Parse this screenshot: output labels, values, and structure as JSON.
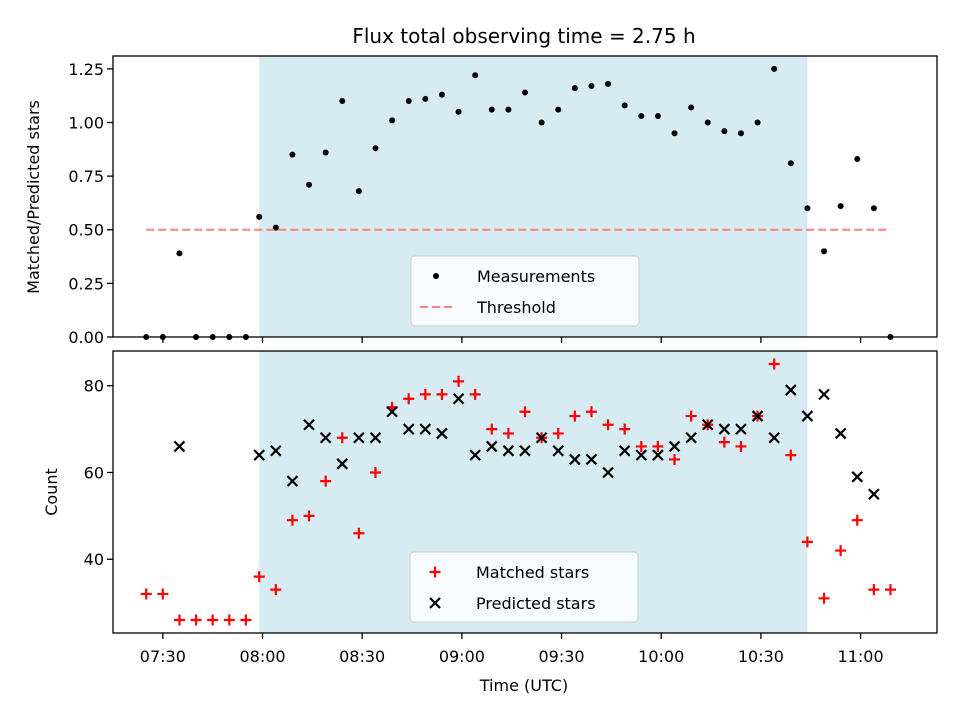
{
  "chart_data": [
    {
      "type": "scatter",
      "title": "Flux total observing time = 2.75 h",
      "ylabel": "Matched/Predicted stars",
      "xlabel": "",
      "x_range": [
        "07:15",
        "11:23"
      ],
      "ylim": [
        0,
        1.31
      ],
      "y_ticks": [
        "0.00",
        "0.25",
        "0.50",
        "0.75",
        "1.00",
        "1.25"
      ],
      "y_tick_values": [
        0,
        0.25,
        0.5,
        0.75,
        1.0,
        1.25
      ],
      "x_ticks": [
        "07:30",
        "08:00",
        "08:30",
        "09:00",
        "09:30",
        "10:00",
        "10:30",
        "11:00"
      ],
      "shaded_span": [
        "07:59",
        "10:44"
      ],
      "shade_color": "#add8e6",
      "legend_position": "lower-center",
      "series": [
        {
          "name": "Measurements",
          "marker": "dot",
          "color": "#000000",
          "points": [
            [
              "07:25",
              0.0
            ],
            [
              "07:30",
              0.0
            ],
            [
              "07:35",
              0.39
            ],
            [
              "07:40",
              0.0
            ],
            [
              "07:45",
              0.0
            ],
            [
              "07:50",
              0.0
            ],
            [
              "07:55",
              0.0
            ],
            [
              "07:59",
              0.56
            ],
            [
              "08:04",
              0.51
            ],
            [
              "08:09",
              0.85
            ],
            [
              "08:14",
              0.71
            ],
            [
              "08:19",
              0.86
            ],
            [
              "08:24",
              1.1
            ],
            [
              "08:29",
              0.68
            ],
            [
              "08:34",
              0.88
            ],
            [
              "08:39",
              1.01
            ],
            [
              "08:44",
              1.1
            ],
            [
              "08:49",
              1.11
            ],
            [
              "08:54",
              1.13
            ],
            [
              "08:59",
              1.05
            ],
            [
              "09:04",
              1.22
            ],
            [
              "09:09",
              1.06
            ],
            [
              "09:14",
              1.06
            ],
            [
              "09:19",
              1.14
            ],
            [
              "09:24",
              1.0
            ],
            [
              "09:29",
              1.06
            ],
            [
              "09:34",
              1.16
            ],
            [
              "09:39",
              1.17
            ],
            [
              "09:44",
              1.18
            ],
            [
              "09:49",
              1.08
            ],
            [
              "09:54",
              1.03
            ],
            [
              "09:59",
              1.03
            ],
            [
              "10:04",
              0.95
            ],
            [
              "10:09",
              1.07
            ],
            [
              "10:14",
              1.0
            ],
            [
              "10:19",
              0.96
            ],
            [
              "10:24",
              0.95
            ],
            [
              "10:29",
              1.0
            ],
            [
              "10:34",
              1.25
            ],
            [
              "10:39",
              0.81
            ],
            [
              "10:44",
              0.6
            ],
            [
              "10:49",
              0.4
            ],
            [
              "10:54",
              0.61
            ],
            [
              "10:59",
              0.83
            ],
            [
              "11:04",
              0.6
            ],
            [
              "11:09",
              0.0
            ]
          ]
        },
        {
          "name": "Threshold",
          "marker": "dashed-line",
          "color": "#ff7f7f",
          "points": [
            [
              "07:25",
              0.5
            ],
            [
              "11:09",
              0.5
            ]
          ]
        }
      ]
    },
    {
      "type": "scatter",
      "title": "",
      "ylabel": "Count",
      "xlabel": "Time (UTC)",
      "x_range": [
        "07:15",
        "11:23"
      ],
      "ylim": [
        23,
        88
      ],
      "y_ticks": [
        "40",
        "60",
        "80"
      ],
      "y_tick_values": [
        40,
        60,
        80
      ],
      "x_ticks": [
        "07:30",
        "08:00",
        "08:30",
        "09:00",
        "09:30",
        "10:00",
        "10:30",
        "11:00"
      ],
      "shaded_span": [
        "07:59",
        "10:44"
      ],
      "shade_color": "#add8e6",
      "legend_position": "lower-center",
      "series": [
        {
          "name": "Matched stars",
          "marker": "plus",
          "color": "#ff0000",
          "points": [
            [
              "07:25",
              32
            ],
            [
              "07:30",
              32
            ],
            [
              "07:35",
              26
            ],
            [
              "07:40",
              26
            ],
            [
              "07:45",
              26
            ],
            [
              "07:50",
              26
            ],
            [
              "07:55",
              26
            ],
            [
              "07:59",
              36
            ],
            [
              "08:04",
              33
            ],
            [
              "08:09",
              49
            ],
            [
              "08:14",
              50
            ],
            [
              "08:19",
              58
            ],
            [
              "08:24",
              68
            ],
            [
              "08:29",
              46
            ],
            [
              "08:34",
              60
            ],
            [
              "08:39",
              75
            ],
            [
              "08:44",
              77
            ],
            [
              "08:49",
              78
            ],
            [
              "08:54",
              78
            ],
            [
              "08:59",
              81
            ],
            [
              "09:04",
              78
            ],
            [
              "09:09",
              70
            ],
            [
              "09:14",
              69
            ],
            [
              "09:19",
              74
            ],
            [
              "09:24",
              68
            ],
            [
              "09:29",
              69
            ],
            [
              "09:34",
              73
            ],
            [
              "09:39",
              74
            ],
            [
              "09:44",
              71
            ],
            [
              "09:49",
              70
            ],
            [
              "09:54",
              66
            ],
            [
              "09:59",
              66
            ],
            [
              "10:04",
              63
            ],
            [
              "10:09",
              73
            ],
            [
              "10:14",
              71
            ],
            [
              "10:19",
              67
            ],
            [
              "10:24",
              66
            ],
            [
              "10:29",
              73
            ],
            [
              "10:34",
              85
            ],
            [
              "10:39",
              64
            ],
            [
              "10:44",
              44
            ],
            [
              "10:49",
              31
            ],
            [
              "10:54",
              42
            ],
            [
              "10:59",
              49
            ],
            [
              "11:04",
              33
            ],
            [
              "11:09",
              33
            ]
          ]
        },
        {
          "name": "Predicted stars",
          "marker": "x",
          "color": "#000000",
          "points": [
            [
              "07:35",
              66
            ],
            [
              "07:59",
              64
            ],
            [
              "08:04",
              65
            ],
            [
              "08:09",
              58
            ],
            [
              "08:14",
              71
            ],
            [
              "08:19",
              68
            ],
            [
              "08:24",
              62
            ],
            [
              "08:29",
              68
            ],
            [
              "08:34",
              68
            ],
            [
              "08:39",
              74
            ],
            [
              "08:44",
              70
            ],
            [
              "08:49",
              70
            ],
            [
              "08:54",
              69
            ],
            [
              "08:59",
              77
            ],
            [
              "09:04",
              64
            ],
            [
              "09:09",
              66
            ],
            [
              "09:14",
              65
            ],
            [
              "09:19",
              65
            ],
            [
              "09:24",
              68
            ],
            [
              "09:29",
              65
            ],
            [
              "09:34",
              63
            ],
            [
              "09:39",
              63
            ],
            [
              "09:44",
              60
            ],
            [
              "09:49",
              65
            ],
            [
              "09:54",
              64
            ],
            [
              "09:59",
              64
            ],
            [
              "10:04",
              66
            ],
            [
              "10:09",
              68
            ],
            [
              "10:14",
              71
            ],
            [
              "10:19",
              70
            ],
            [
              "10:24",
              70
            ],
            [
              "10:29",
              73
            ],
            [
              "10:34",
              68
            ],
            [
              "10:39",
              79
            ],
            [
              "10:44",
              73
            ],
            [
              "10:49",
              78
            ],
            [
              "10:54",
              69
            ],
            [
              "10:59",
              59
            ],
            [
              "11:04",
              55
            ]
          ]
        }
      ]
    }
  ]
}
